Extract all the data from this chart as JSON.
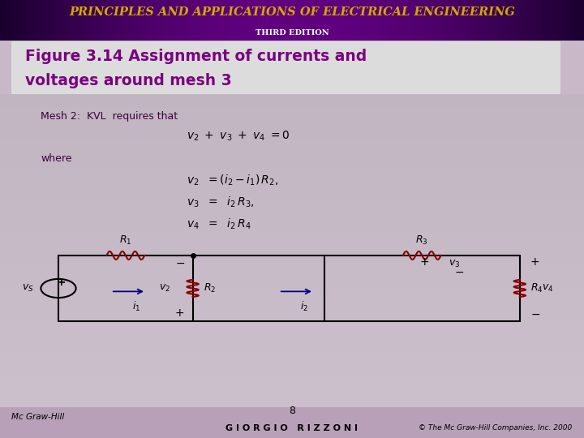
{
  "header_text": "PRINCIPLES AND APPLICATIONS OF ELECTRICAL ENGINEERING",
  "header_sub": "THIRD EDITION",
  "header_text_color": "#d4a800",
  "header_sub_color": "#ffffff",
  "title_text_line1": "Figure 3.14 Assignment of currents and",
  "title_text_line2": "voltages around mesh 3",
  "title_bg": "#dcdcdc",
  "title_text_color": "#7b0080",
  "mesh2_text": "Mesh 2:  KVL  requires that",
  "kvl_eq": "$v_2\\ +\\ v_3\\ +\\ v_4\\ =0$",
  "where_text": "where",
  "eq1": "$v_2\\ \\ =(i_2-i_1)\\,R_2,$",
  "eq2": "$v_3\\ \\ =\\ \\ i_2\\,R_3,$",
  "eq3": "$v_4\\ \\ =\\ \\ i_2\\,R_4$",
  "footer_left": "Mc Graw-Hill",
  "footer_center": "G I O R G I O   R I Z Z O N I",
  "footer_right": "© The Mc Graw-Hill Companies, Inc. 2000",
  "footer_center_num": "8",
  "circuit_color": "#000000",
  "resistor_color": "#8b0000",
  "label_color": "#000000",
  "body_color": "#c8b8c8"
}
